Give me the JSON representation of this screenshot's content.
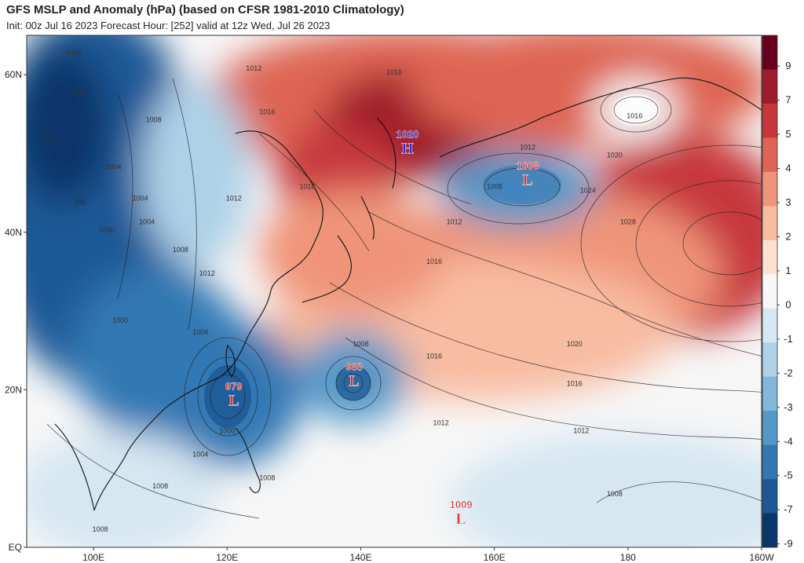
{
  "header": {
    "title": "GFS MSLP and Anomaly (hPa) (based on CFSR 1981-2010 Climatology)",
    "subtitle": "Init: 00z Jul 16 2023   Forecast Hour: [252]   valid at 12z Wed, Jul 26 2023"
  },
  "chart_data": {
    "type": "heatmap",
    "title": "GFS MSLP and Anomaly (hPa) (based on CFSR 1981-2010 Climatology)",
    "x_ticks": [
      "100E",
      "120E",
      "140E",
      "160E",
      "180",
      "160W"
    ],
    "y_ticks": [
      "EQ",
      "20N",
      "40N",
      "60N"
    ],
    "lon_range": [
      90,
      200
    ],
    "lat_range": [
      0,
      65
    ],
    "colorbar": {
      "labels": [
        "9",
        "7",
        "5",
        "4",
        "3",
        "2",
        "1",
        "0",
        "-1",
        "-2",
        "-3",
        "-4",
        "-5",
        "-7",
        "-9"
      ],
      "colors": [
        "#67001f",
        "#9e1c2c",
        "#c7373c",
        "#de6553",
        "#ef9479",
        "#f8bca1",
        "#fde0d1",
        "#f7f7f7",
        "#d6e7f2",
        "#afd1e7",
        "#83b8da",
        "#5598c8",
        "#3378b4",
        "#1d5896",
        "#0b3669"
      ]
    },
    "systems": [
      {
        "type": "H",
        "value": "1020",
        "lon": 147,
        "lat": 51,
        "color": "#2b2bd6"
      },
      {
        "type": "L",
        "value": "1008",
        "lon": 165,
        "lat": 47,
        "color": "#e03030"
      },
      {
        "type": "L",
        "value": "979",
        "lon": 121,
        "lat": 19,
        "color": "#e03030"
      },
      {
        "type": "L",
        "value": "988",
        "lon": 139,
        "lat": 21.5,
        "color": "#e03030"
      },
      {
        "type": "L",
        "value": "1009",
        "lon": 155,
        "lat": 4,
        "color": "#e03030"
      }
    ],
    "isobar_labels": [
      {
        "text": "1004",
        "lon": 97,
        "lat": 62.5
      },
      {
        "text": "1000",
        "lon": 98,
        "lat": 57.5
      },
      {
        "text": "1004",
        "lon": 93,
        "lat": 51.5
      },
      {
        "text": "1004",
        "lon": 103,
        "lat": 48
      },
      {
        "text": "996",
        "lon": 98,
        "lat": 43.5
      },
      {
        "text": "1004",
        "lon": 107,
        "lat": 44
      },
      {
        "text": "1004",
        "lon": 108,
        "lat": 41
      },
      {
        "text": "1000",
        "lon": 102,
        "lat": 40
      },
      {
        "text": "1008",
        "lon": 109,
        "lat": 54
      },
      {
        "text": "1012",
        "lon": 124,
        "lat": 60.5
      },
      {
        "text": "1016",
        "lon": 126,
        "lat": 55
      },
      {
        "text": "1012",
        "lon": 121,
        "lat": 44
      },
      {
        "text": "1016",
        "lon": 132,
        "lat": 45.5
      },
      {
        "text": "1016",
        "lon": 145,
        "lat": 60
      },
      {
        "text": "1012",
        "lon": 165,
        "lat": 50.5
      },
      {
        "text": "1008",
        "lon": 160,
        "lat": 45.5
      },
      {
        "text": "1012",
        "lon": 154,
        "lat": 41
      },
      {
        "text": "1016",
        "lon": 151,
        "lat": 36
      },
      {
        "text": "1016",
        "lon": 181,
        "lat": 54.5
      },
      {
        "text": "1020",
        "lon": 178,
        "lat": 49.5
      },
      {
        "text": "1024",
        "lon": 174,
        "lat": 45
      },
      {
        "text": "1028",
        "lon": 180,
        "lat": 41
      },
      {
        "text": "1008",
        "lon": 113,
        "lat": 37.5
      },
      {
        "text": "1012",
        "lon": 117,
        "lat": 34.5
      },
      {
        "text": "1000",
        "lon": 104,
        "lat": 28.5
      },
      {
        "text": "1004",
        "lon": 116,
        "lat": 27
      },
      {
        "text": "1008",
        "lon": 140,
        "lat": 25.5
      },
      {
        "text": "1016",
        "lon": 151,
        "lat": 24
      },
      {
        "text": "1020",
        "lon": 172,
        "lat": 25.5
      },
      {
        "text": "1016",
        "lon": 172,
        "lat": 20.5
      },
      {
        "text": "1012",
        "lon": 152,
        "lat": 15.5
      },
      {
        "text": "1012",
        "lon": 173,
        "lat": 14.5
      },
      {
        "text": "1000",
        "lon": 120,
        "lat": 14.5
      },
      {
        "text": "1004",
        "lon": 116,
        "lat": 11.5
      },
      {
        "text": "1008",
        "lon": 110,
        "lat": 7.5
      },
      {
        "text": "1008",
        "lon": 126,
        "lat": 8.5
      },
      {
        "text": "1008",
        "lon": 101,
        "lat": 2
      },
      {
        "text": "1008",
        "lon": 178,
        "lat": 6.5
      }
    ]
  }
}
